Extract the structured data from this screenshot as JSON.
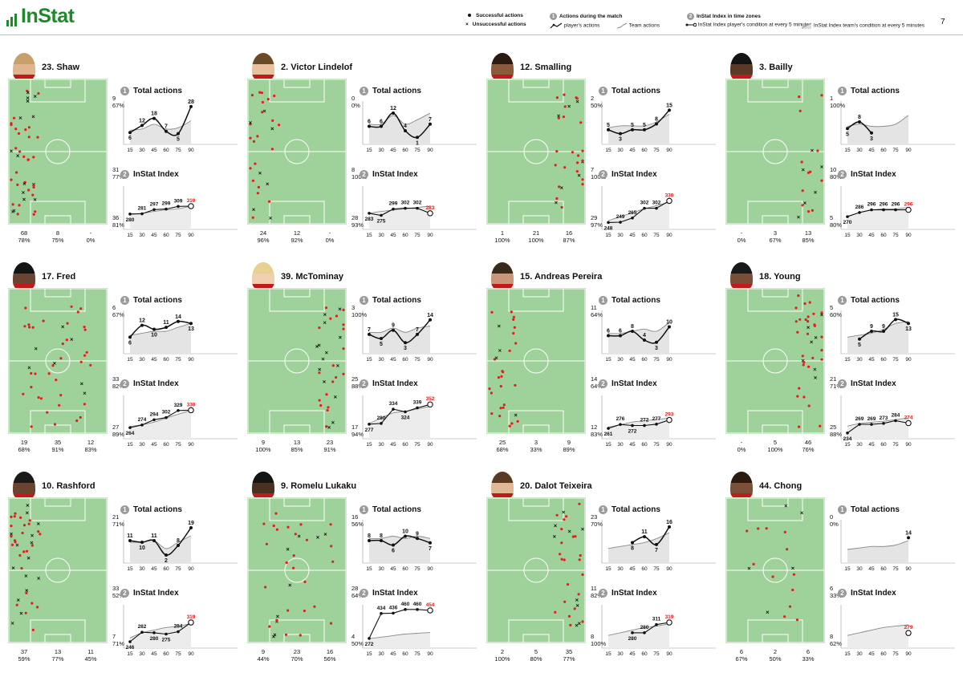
{
  "brand": {
    "logo": "InStat",
    "page_number": "7",
    "accent": "#1e8a2a",
    "dot": "#e51d1d",
    "index_last": "#e51d1d"
  },
  "legend": {
    "successful": "Successful actions",
    "unsuccessful": "Unsuccessful actions",
    "n1": "1",
    "title1": "Actions during the match",
    "players_actions": "player's actions",
    "team_actions": "Team actions",
    "n2": "2",
    "title2": "InStat Index in time zones",
    "player_condition": "InStat Index player's condition at every 5 minutes",
    "team_condition": "InStat Index team's condition at every 5 minutes"
  },
  "labels": {
    "total_actions": "Total actions",
    "instat_index": "InStat Index",
    "n1": "1",
    "n2": "2",
    "time_ticks": [
      "15",
      "30",
      "45",
      "60",
      "75",
      "90"
    ]
  },
  "players": [
    {
      "name": "23. Shaw",
      "hair": "#c9a069",
      "skin": "#e0b48f",
      "bottom": [
        {
          "v": "68",
          "p": "78%"
        },
        {
          "v": "8",
          "p": "75%"
        },
        {
          "v": "-",
          "p": "0%"
        }
      ],
      "right": [
        {
          "v": "9",
          "p": "67%"
        },
        {
          "v": "31",
          "p": "77%"
        },
        {
          "v": "36",
          "p": "81%"
        }
      ],
      "chart_data": {
        "type": "line",
        "x": [
          15,
          30,
          45,
          60,
          75,
          90
        ],
        "total": [
          6,
          12,
          18,
          7,
          5,
          28
        ],
        "total_max": 30,
        "team": [
          8,
          9,
          13,
          9,
          10,
          16
        ],
        "index": [
          280,
          281,
          297,
          299,
          309,
          310
        ],
        "index_team": [
          281,
          283,
          290,
          296,
          300,
          310
        ],
        "index_range": [
          240,
          380
        ],
        "index_last_time": 90
      }
    },
    {
      "name": "2. Victor Lindelof",
      "hair": "#6b4a2a",
      "skin": "#e8c2a0",
      "bottom": [
        {
          "v": "24",
          "p": "96%"
        },
        {
          "v": "12",
          "p": "92%"
        },
        {
          "v": "-",
          "p": "0%"
        }
      ],
      "right": [
        {
          "v": "0",
          "p": "0%"
        },
        {
          "v": "8",
          "p": "100%"
        },
        {
          "v": "28",
          "p": "93%"
        }
      ],
      "chart_data": {
        "type": "line",
        "x": [
          15,
          30,
          45,
          60,
          75,
          90
        ],
        "total": [
          6,
          6,
          12,
          4,
          1,
          7
        ],
        "total_max": 16,
        "team": [
          7,
          7,
          11,
          7,
          9,
          12
        ],
        "index": [
          283,
          275,
          299,
          302,
          302,
          283
        ],
        "index_team": [
          283,
          290,
          295,
          300,
          305,
          310
        ],
        "index_range": [
          240,
          380
        ],
        "index_last_time": 90
      }
    },
    {
      "name": "12. Smalling",
      "hair": "#2a1a10",
      "skin": "#8a5a3c",
      "bottom": [
        {
          "v": "1",
          "p": "100%"
        },
        {
          "v": "21",
          "p": "100%"
        },
        {
          "v": "16",
          "p": "87%"
        }
      ],
      "right": [
        {
          "v": "2",
          "p": "50%"
        },
        {
          "v": "7",
          "p": "100%"
        },
        {
          "v": "29",
          "p": "97%"
        }
      ],
      "chart_data": {
        "type": "line",
        "x": [
          15,
          30,
          45,
          60,
          75,
          90
        ],
        "total": [
          5,
          3,
          5,
          5,
          8,
          15
        ],
        "total_max": 18,
        "team": [
          6,
          7,
          7,
          7,
          9,
          13
        ],
        "index": [
          248,
          249,
          265,
          302,
          302,
          330
        ],
        "index_team": [
          255,
          270,
          285,
          300,
          312,
          325
        ],
        "index_range": [
          240,
          380
        ],
        "index_last_time": 90
      }
    },
    {
      "name": "3. Bailly",
      "hair": "#141414",
      "skin": "#5a3a26",
      "bottom": [
        {
          "v": "-",
          "p": "0%"
        },
        {
          "v": "3",
          "p": "67%"
        },
        {
          "v": "13",
          "p": "85%"
        }
      ],
      "right": [
        {
          "v": "1",
          "p": "100%"
        },
        {
          "v": "10",
          "p": "80%"
        },
        {
          "v": "5",
          "p": "80%"
        }
      ],
      "chart_data": {
        "type": "line",
        "x": [
          15,
          30,
          45,
          60,
          75,
          90
        ],
        "total": [
          5,
          8,
          3,
          null,
          null,
          null
        ],
        "total_max": 16,
        "team": [
          6,
          7,
          6,
          6,
          7,
          11
        ],
        "index": [
          270,
          286,
          296,
          296,
          296,
          296
        ],
        "index_team": [
          272,
          285,
          295,
          300,
          300,
          305
        ],
        "index_range": [
          240,
          380
        ],
        "index_last_time": 90
      }
    },
    {
      "name": "17. Fred",
      "hair": "#141414",
      "skin": "#6a4430",
      "bottom": [
        {
          "v": "19",
          "p": "68%"
        },
        {
          "v": "35",
          "p": "91%"
        },
        {
          "v": "12",
          "p": "83%"
        }
      ],
      "right": [
        {
          "v": "6",
          "p": "67%"
        },
        {
          "v": "33",
          "p": "82%"
        },
        {
          "v": "27",
          "p": "89%"
        }
      ],
      "chart_data": {
        "type": "line",
        "x": [
          15,
          30,
          45,
          60,
          75,
          90
        ],
        "total": [
          6,
          12,
          10,
          11,
          14,
          13
        ],
        "total_max": 18,
        "team": [
          7,
          8,
          9,
          9,
          11,
          13
        ],
        "index": [
          264,
          274,
          294,
          302,
          329,
          330
        ],
        "index_team": [
          268,
          275,
          285,
          300,
          315,
          328
        ],
        "index_range": [
          240,
          380
        ],
        "index_last_time": 90
      }
    },
    {
      "name": "39. McTominay",
      "hair": "#e8d090",
      "skin": "#f0cfb0",
      "bottom": [
        {
          "v": "9",
          "p": "100%"
        },
        {
          "v": "13",
          "p": "85%"
        },
        {
          "v": "23",
          "p": "91%"
        }
      ],
      "right": [
        {
          "v": "3",
          "p": "100%"
        },
        {
          "v": "25",
          "p": "88%"
        },
        {
          "v": "17",
          "p": "94%"
        }
      ],
      "chart_data": {
        "type": "line",
        "x": [
          15,
          30,
          45,
          60,
          75,
          90
        ],
        "total": [
          7,
          5,
          9,
          3,
          7,
          14
        ],
        "total_max": 17,
        "team": [
          8,
          8,
          10,
          8,
          10,
          11
        ],
        "index": [
          277,
          280,
          334,
          324,
          339,
          352
        ],
        "index_team": [
          280,
          300,
          320,
          325,
          335,
          345
        ],
        "index_range": [
          240,
          380
        ],
        "index_last_time": 90
      }
    },
    {
      "name": "15. Andreas Pereira",
      "hair": "#3a2a1a",
      "skin": "#c9967a",
      "bottom": [
        {
          "v": "25",
          "p": "68%"
        },
        {
          "v": "3",
          "p": "33%"
        },
        {
          "v": "9",
          "p": "89%"
        }
      ],
      "right": [
        {
          "v": "11",
          "p": "64%"
        },
        {
          "v": "14",
          "p": "64%"
        },
        {
          "v": "12",
          "p": "83%"
        }
      ],
      "chart_data": {
        "type": "line",
        "x": [
          15,
          30,
          45,
          60,
          75,
          90
        ],
        "total": [
          6,
          6,
          8,
          4,
          3,
          10
        ],
        "total_max": 16,
        "team": [
          7,
          7,
          8,
          9,
          8,
          12
        ],
        "index": [
          261,
          276,
          272,
          272,
          277,
          293
        ],
        "index_team": [
          266,
          275,
          285,
          290,
          295,
          300
        ],
        "index_range": [
          240,
          380
        ],
        "index_last_time": 90
      }
    },
    {
      "name": "18. Young",
      "hair": "#1a1a1a",
      "skin": "#7a4e36",
      "bottom": [
        {
          "v": "-",
          "p": "0%"
        },
        {
          "v": "5",
          "p": "100%"
        },
        {
          "v": "46",
          "p": "76%"
        }
      ],
      "right": [
        {
          "v": "5",
          "p": "60%"
        },
        {
          "v": "21",
          "p": "71%"
        },
        {
          "v": "25",
          "p": "88%"
        }
      ],
      "chart_data": {
        "type": "line",
        "x": [
          15,
          30,
          45,
          60,
          75,
          90
        ],
        "total": [
          null,
          5,
          9,
          9,
          15,
          13
        ],
        "total_max": 18,
        "team": [
          6,
          7,
          8,
          10,
          13,
          14
        ],
        "index": [
          234,
          269,
          269,
          273,
          284,
          274
        ],
        "index_team": [
          262,
          272,
          278,
          282,
          288,
          295
        ],
        "index_range": [
          230,
          380
        ],
        "index_last_time": 90
      }
    },
    {
      "name": "10. Rashford",
      "hair": "#1a1a1a",
      "skin": "#6a4430",
      "bottom": [
        {
          "v": "37",
          "p": "59%"
        },
        {
          "v": "13",
          "p": "77%"
        },
        {
          "v": "11",
          "p": "45%"
        }
      ],
      "right": [
        {
          "v": "21",
          "p": "71%"
        },
        {
          "v": "33",
          "p": "52%"
        },
        {
          "v": "7",
          "p": "71%"
        }
      ],
      "chart_data": {
        "type": "line",
        "x": [
          15,
          30,
          45,
          60,
          75,
          90
        ],
        "total": [
          11,
          10,
          11,
          2,
          8,
          19
        ],
        "total_max": 22,
        "team": [
          10,
          10,
          11,
          6,
          10,
          14
        ],
        "index": [
          246,
          282,
          280,
          275,
          284,
          319
        ],
        "index_team": [
          260,
          280,
          290,
          300,
          305,
          315
        ],
        "index_range": [
          240,
          380
        ],
        "index_last_time": 90
      }
    },
    {
      "name": "9. Romelu Lukaku",
      "hair": "#141414",
      "skin": "#4a3020",
      "bottom": [
        {
          "v": "9",
          "p": "44%"
        },
        {
          "v": "23",
          "p": "70%"
        },
        {
          "v": "16",
          "p": "56%"
        }
      ],
      "right": [
        {
          "v": "16",
          "p": "56%"
        },
        {
          "v": "28",
          "p": "64%"
        },
        {
          "v": "4",
          "p": "50%"
        }
      ],
      "chart_data": {
        "type": "line",
        "x": [
          15,
          30,
          45,
          60,
          75,
          90
        ],
        "total": [
          8,
          8,
          6,
          10,
          9,
          7
        ],
        "total_max": 16,
        "team": [
          9,
          9,
          10,
          9,
          10,
          9
        ],
        "index": [
          272,
          434,
          436,
          460,
          460,
          454
        ],
        "index_team": [
          270,
          280,
          290,
          300,
          305,
          310
        ],
        "index_range": [
          240,
          480
        ],
        "index_last_time": 90
      }
    },
    {
      "name": "20. Dalot Teixeira",
      "hair": "#5a3a22",
      "skin": "#e0b896",
      "bottom": [
        {
          "v": "2",
          "p": "100%"
        },
        {
          "v": "5",
          "p": "80%"
        },
        {
          "v": "35",
          "p": "77%"
        }
      ],
      "right": [
        {
          "v": "23",
          "p": "70%"
        },
        {
          "v": "11",
          "p": "82%"
        },
        {
          "v": "8",
          "p": "100%"
        }
      ],
      "chart_data": {
        "type": "line",
        "x": [
          15,
          30,
          45,
          60,
          75,
          90
        ],
        "total": [
          null,
          null,
          8,
          11,
          7,
          16
        ],
        "total_max": 18,
        "team": [
          5,
          6,
          7,
          8,
          10,
          13
        ],
        "index": [
          null,
          null,
          280,
          280,
          311,
          319
        ],
        "index_team": [
          270,
          280,
          290,
          300,
          305,
          315
        ],
        "index_range": [
          240,
          380
        ],
        "index_last_time": 90
      }
    },
    {
      "name": "44. Chong",
      "hair": "#2a1a10",
      "skin": "#7a5038",
      "bottom": [
        {
          "v": "6",
          "p": "67%"
        },
        {
          "v": "2",
          "p": "50%"
        },
        {
          "v": "6",
          "p": "33%"
        }
      ],
      "right": [
        {
          "v": "0",
          "p": "0%"
        },
        {
          "v": "6",
          "p": "33%"
        },
        {
          "v": "8",
          "p": "62%"
        }
      ],
      "chart_data": {
        "type": "line",
        "x": [
          15,
          30,
          45,
          60,
          75,
          90
        ],
        "total": [
          null,
          null,
          null,
          null,
          null,
          14
        ],
        "total_max": 24,
        "team": [
          6,
          7,
          8,
          8,
          9,
          12
        ],
        "index": [
          null,
          null,
          null,
          null,
          null,
          279
        ],
        "index_team": [
          270,
          280,
          290,
          300,
          305,
          310
        ],
        "index_range": [
          240,
          380
        ],
        "index_last_time": 90
      }
    }
  ]
}
